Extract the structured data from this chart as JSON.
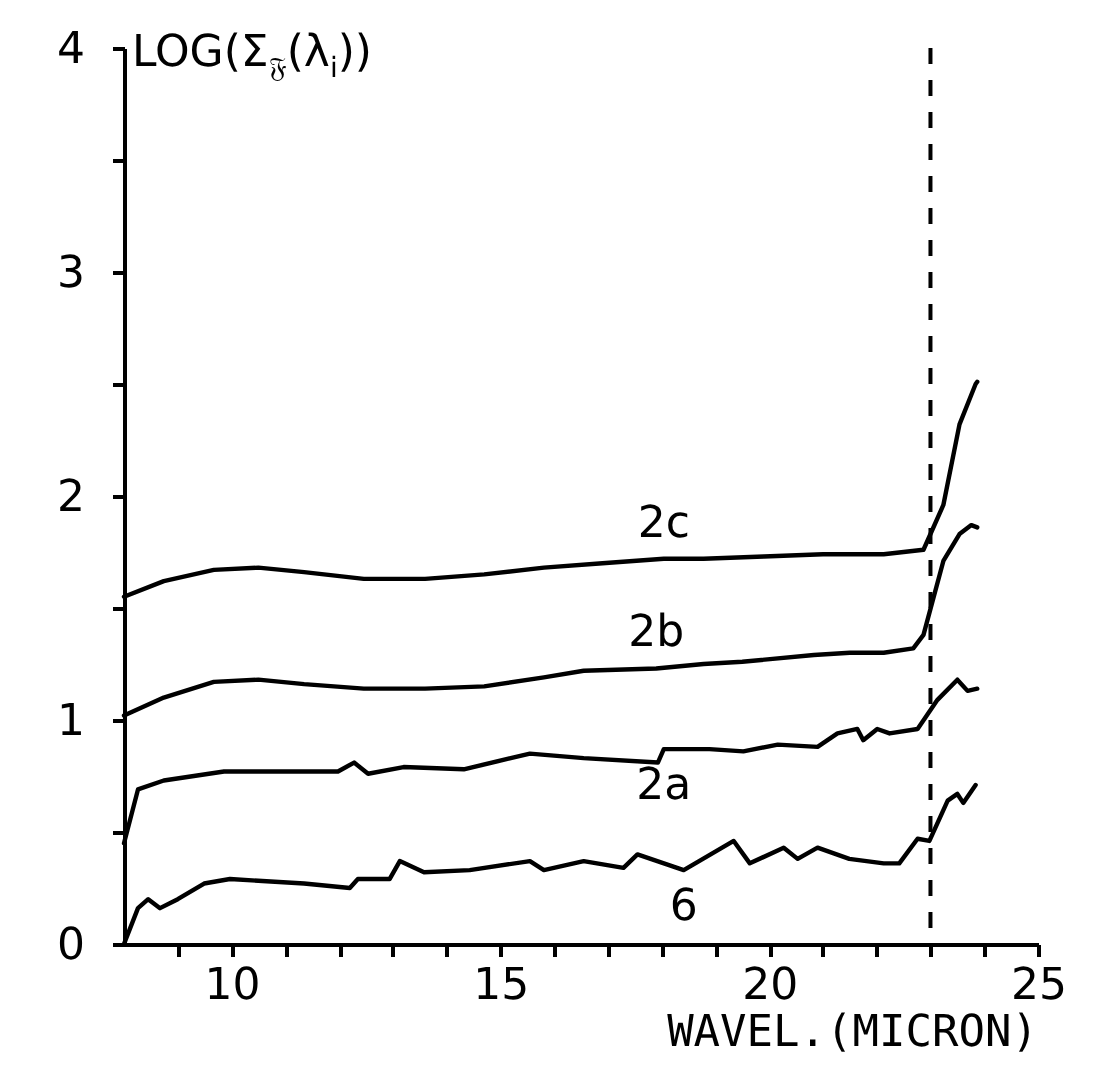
{
  "chart_data": {
    "type": "line",
    "xlabel": "WAVEL.(MICRON)",
    "ylabel": "LOG(Σ$_{𝔉}$(λ$_{i}$))",
    "xlim": [
      8,
      25
    ],
    "ylim": [
      0,
      4
    ],
    "xticks": [
      {
        "value": 9,
        "label": null
      },
      10,
      {
        "value": 11,
        "label": null
      },
      {
        "value": 12,
        "label": null
      },
      {
        "value": 13,
        "label": null
      },
      {
        "value": 14,
        "label": null
      },
      15,
      {
        "value": 16,
        "label": null
      },
      {
        "value": 17,
        "label": null
      },
      {
        "value": 18,
        "label": null
      },
      {
        "value": 19,
        "label": null
      },
      20,
      {
        "value": 21,
        "label": null
      },
      {
        "value": 22,
        "label": null
      },
      {
        "value": 23,
        "label": null
      },
      {
        "value": 24,
        "label": null
      },
      25
    ],
    "yticks": [
      0,
      {
        "value": 0.5,
        "label": null
      },
      1,
      {
        "value": 1.5,
        "label": null
      },
      2,
      {
        "value": 2.5,
        "label": null
      },
      3,
      {
        "value": 3.5,
        "label": null
      },
      4
    ],
    "grid": false,
    "legend": false,
    "marker": "none",
    "line_style": "solid",
    "series": [
      {
        "name": "2c",
        "color": "#000000",
        "x": [
          8,
          8.74,
          9.67,
          10.5,
          11.35,
          12.46,
          13.6,
          14.7,
          15.81,
          16.9,
          18.04,
          18.78,
          19.9,
          21,
          22.13,
          22.87,
          23.24,
          23.54,
          23.84,
          23.87
        ],
        "values": [
          1.55,
          1.62,
          1.67,
          1.68,
          1.66,
          1.63,
          1.63,
          1.65,
          1.68,
          1.7,
          1.72,
          1.72,
          1.73,
          1.74,
          1.74,
          1.76,
          1.96,
          2.32,
          2.5,
          2.51
        ]
      },
      {
        "name": "2b",
        "color": "#000000",
        "x": [
          8,
          8.74,
          9.67,
          10.5,
          11.35,
          12.46,
          13.6,
          14.7,
          15.81,
          16.55,
          17.9,
          18.78,
          19.5,
          20.83,
          21.5,
          22.13,
          22.68,
          22.87,
          23.24,
          23.54,
          23.76,
          23.87
        ],
        "values": [
          1.02,
          1.1,
          1.17,
          1.18,
          1.16,
          1.14,
          1.14,
          1.15,
          1.19,
          1.22,
          1.23,
          1.25,
          1.26,
          1.29,
          1.3,
          1.3,
          1.32,
          1.38,
          1.71,
          1.83,
          1.87,
          1.86
        ]
      },
      {
        "name": "2a",
        "color": "#000000",
        "x": [
          8,
          8.26,
          8.74,
          9.86,
          11.98,
          12.28,
          12.54,
          13.2,
          14.32,
          15.55,
          16.55,
          17.93,
          18.04,
          18.89,
          19.52,
          20.16,
          20.9,
          21.27,
          21.64,
          21.75,
          22.01,
          22.24,
          22.76,
          23.13,
          23.5,
          23.69,
          23.87
        ],
        "values": [
          0.45,
          0.69,
          0.73,
          0.77,
          0.77,
          0.81,
          0.76,
          0.79,
          0.78,
          0.85,
          0.83,
          0.81,
          0.87,
          0.87,
          0.86,
          0.89,
          0.88,
          0.94,
          0.96,
          0.91,
          0.96,
          0.94,
          0.96,
          1.09,
          1.18,
          1.13,
          1.14
        ]
      },
      {
        "name": "6",
        "color": "#000000",
        "x": [
          8,
          8.26,
          8.45,
          8.67,
          9,
          9.49,
          9.97,
          11.35,
          12.2,
          12.35,
          12.94,
          13.13,
          13.58,
          14.43,
          15.55,
          15.81,
          16.55,
          17.29,
          17.55,
          18.41,
          19.34,
          19.64,
          20.27,
          20.53,
          20.9,
          21.49,
          22.13,
          22.42,
          22.76,
          22.98,
          23.32,
          23.5,
          23.61,
          23.84
        ],
        "values": [
          0,
          0.16,
          0.2,
          0.16,
          0.2,
          0.27,
          0.29,
          0.27,
          0.25,
          0.29,
          0.29,
          0.37,
          0.32,
          0.33,
          0.37,
          0.33,
          0.37,
          0.34,
          0.4,
          0.33,
          0.46,
          0.36,
          0.43,
          0.38,
          0.43,
          0.38,
          0.36,
          0.36,
          0.47,
          0.46,
          0.64,
          0.67,
          0.63,
          0.71
        ]
      }
    ],
    "ref_lines": [
      {
        "axis": "x",
        "value": 23,
        "label": null,
        "color": "#000000",
        "line_style": "dashed"
      }
    ]
  }
}
